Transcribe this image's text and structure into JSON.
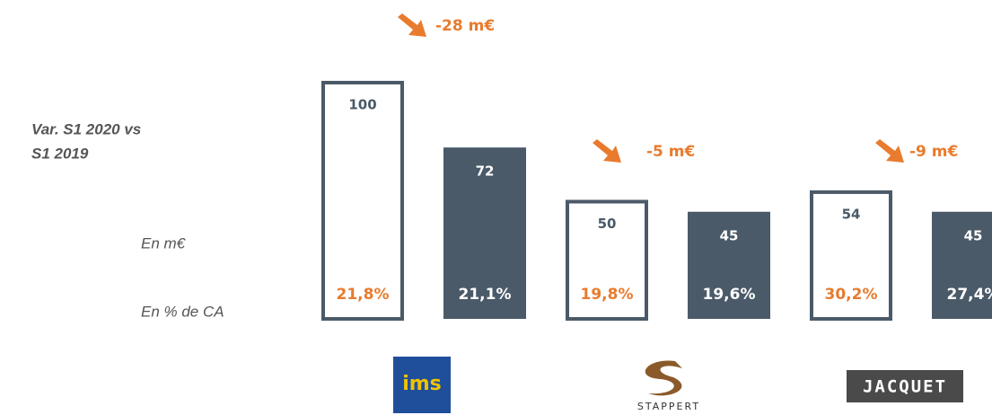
{
  "chart_data": {
    "type": "bar",
    "row_labels": {
      "variation": [
        "Var. S1 2020 vs",
        "S1 2019"
      ],
      "amount": "En m€",
      "percent": "En % de CA"
    },
    "logos": [
      "ims",
      "STAPPERT",
      "JACQUET"
    ],
    "ylim": [
      0,
      100
    ],
    "series": [
      {
        "color": "#4a5a68",
        "style": "outline",
        "values": [
          100,
          50,
          54
        ]
      },
      {
        "color": "#4a5a68",
        "style": "filled",
        "values": [
          72,
          45,
          45
        ]
      }
    ],
    "percent_of_revenue": [
      {
        "values": [
          21.8,
          19.8,
          30.2
        ],
        "value_labels": [
          "21,8%",
          "19,8%",
          "30,2%"
        ],
        "color": "#e87b2e"
      },
      {
        "values": [
          21.1,
          19.6,
          27.4
        ],
        "value_labels": [
          "21,1%",
          "19,6%",
          "27,4%"
        ],
        "color": "#ffffff"
      }
    ],
    "variations": {
      "values": [
        -28,
        -5,
        -9
      ],
      "value_labels": [
        "-28 m€",
        "-5 m€",
        "-9 m€"
      ],
      "color": "#e87b2e"
    }
  }
}
